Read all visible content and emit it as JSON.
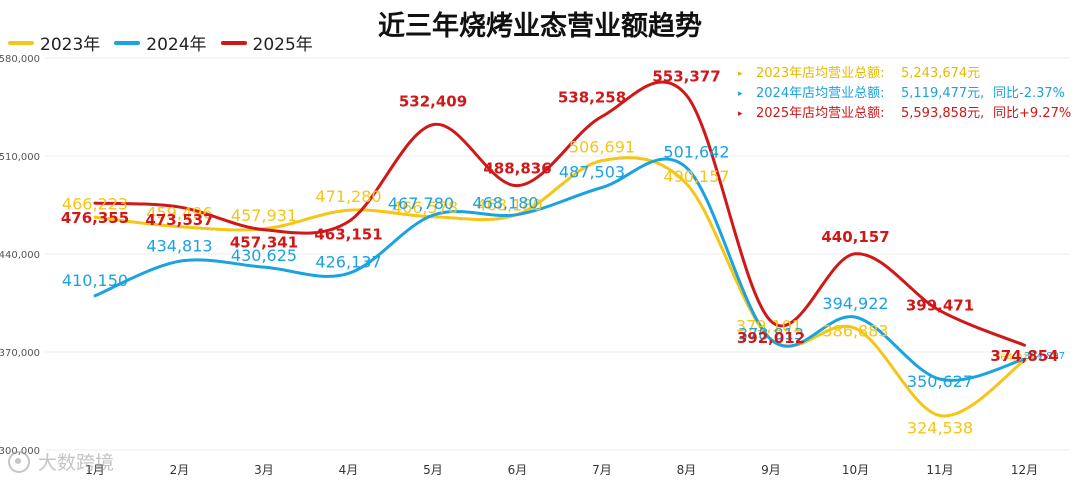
{
  "chart_data": {
    "type": "line",
    "title": "近三年烧烤业态营业额趋势",
    "categories": [
      "1月",
      "2月",
      "3月",
      "4月",
      "5月",
      "6月",
      "7月",
      "8月",
      "9月",
      "10月",
      "11月",
      "12月"
    ],
    "y_ticks": [
      "300,000",
      "370,000",
      "440,000",
      "510,000",
      "580,000"
    ],
    "ylim": [
      300000,
      580000
    ],
    "grid": true,
    "legend_position": "top-left",
    "series": [
      {
        "name": "2023年",
        "color": "#f5c518",
        "values": [
          466223,
          459496,
          457931,
          471280,
          466578,
          468180,
          506691,
          490157,
          379101,
          386883,
          324538,
          364013
        ],
        "labels": [
          "466,223",
          "459,496",
          "457,931",
          "471,280",
          "466,578",
          "468,180",
          "506,691",
          "490,157",
          "379,101",
          "386,883",
          "324,538",
          "364,013"
        ]
      },
      {
        "name": "2024年",
        "color": "#1aa3e0",
        "values": [
          410150,
          434813,
          430625,
          426137,
          467780,
          468180,
          487503,
          501642,
          378813,
          394922,
          350627,
          364897
        ],
        "labels": [
          "410,150",
          "434,813",
          "430,625",
          "426,137",
          "467,780",
          "468,180",
          "487,503",
          "501,642",
          "378,813",
          "394,922",
          "350,627",
          "364,897"
        ]
      },
      {
        "name": "2025年",
        "color": "#d01818",
        "values": [
          476355,
          473537,
          457341,
          463151,
          532409,
          488836,
          538258,
          553377,
          392012,
          440157,
          399471,
          374854
        ],
        "labels": [
          "476,355",
          "473,537",
          "457,341",
          "463,151",
          "532,409",
          "488,836",
          "538,258",
          "553,377",
          "392,012",
          "440,157",
          "399,471",
          "374,854"
        ]
      }
    ],
    "annotations": [
      {
        "label": "2023年店均营业总额:",
        "value": "5,243,674元",
        "yoy": "",
        "color": "#f5c518"
      },
      {
        "label": "2024年店均营业总额:",
        "value": "5,119,477元,",
        "yoy": "同比-2.37%",
        "color": "#1aa3e0"
      },
      {
        "label": "2025年店均营业总额:",
        "value": "5,593,858元,",
        "yoy": "同比+9.27%",
        "color": "#d01818"
      }
    ]
  },
  "watermark": {
    "text": "大数跨境",
    "icon": "brand-logo-icon"
  }
}
